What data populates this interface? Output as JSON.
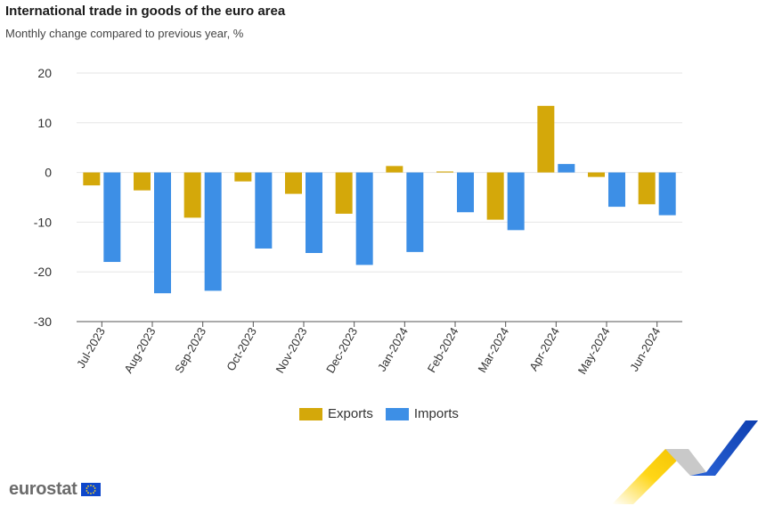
{
  "header": {
    "title": "International trade in goods of the euro area",
    "subtitle": "Monthly change compared to previous year, %"
  },
  "legend": {
    "exports_label": "Exports",
    "imports_label": "Imports"
  },
  "footer": {
    "logo_text": "eurostat"
  },
  "colors": {
    "exports": "#d4a80a",
    "imports": "#3d8fe6",
    "grid": "#e6e6e6",
    "axis": "#555555"
  },
  "chart_data": {
    "type": "bar",
    "title": "International trade in goods of the euro area",
    "subtitle": "Monthly change compared to previous year, %",
    "categories": [
      "Jul-2023",
      "Aug-2023",
      "Sep-2023",
      "Oct-2023",
      "Nov-2023",
      "Dec-2023",
      "Jan-2024",
      "Feb-2024",
      "Mar-2024",
      "Apr-2024",
      "May-2024",
      "Jun-2024"
    ],
    "series": [
      {
        "name": "Exports",
        "values": [
          -2.6,
          -3.6,
          -9.1,
          -1.8,
          -4.3,
          -8.3,
          1.3,
          0.2,
          -9.5,
          13.4,
          -0.9,
          -6.4
        ]
      },
      {
        "name": "Imports",
        "values": [
          -18.0,
          -24.3,
          -23.8,
          -15.3,
          -16.2,
          -18.6,
          -16.0,
          -8.0,
          -11.6,
          1.7,
          -6.9,
          -8.6
        ]
      }
    ],
    "xlabel": "",
    "ylabel": "",
    "ylim": [
      -30,
      20
    ],
    "yticks": [
      20,
      10,
      0,
      -10,
      -20,
      -30
    ],
    "grid": true,
    "legend_position": "bottom"
  }
}
